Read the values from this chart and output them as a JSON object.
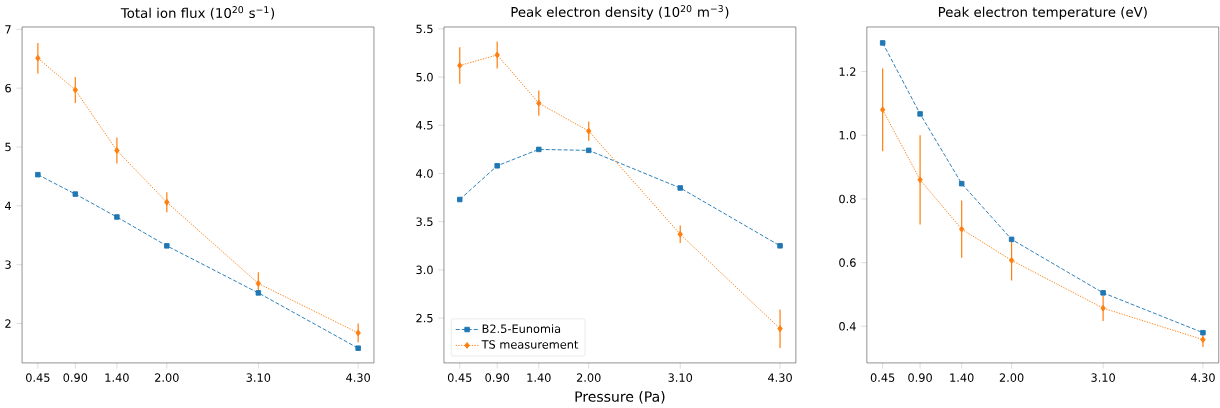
{
  "chart_data": [
    {
      "type": "line",
      "title": "Total ion flux (10$^{20}$ s$^{−1}$)",
      "x": [
        0.45,
        0.9,
        1.4,
        2.0,
        3.1,
        4.3
      ],
      "xlim": [
        0.26,
        4.49
      ],
      "xticks": [
        {
          "value": 0.45,
          "label": "0.45"
        },
        {
          "value": 0.9,
          "label": "0.90"
        },
        {
          "value": 1.4,
          "label": "1.40"
        },
        {
          "value": 2.0,
          "label": "2.00"
        },
        {
          "value": 3.1,
          "label": "3.10"
        },
        {
          "value": 4.3,
          "label": "4.30"
        }
      ],
      "ylim": [
        1.33,
        7.04
      ],
      "yticks": [
        2,
        3,
        4,
        5,
        6,
        7
      ],
      "grid": false,
      "legend": false,
      "series": [
        {
          "color": "#1f77b4",
          "marker": "square",
          "line_style": "dashed",
          "values": [
            4.53,
            4.2,
            3.81,
            3.32,
            2.52,
            1.58
          ]
        },
        {
          "color": "#ff7f0e",
          "marker": "diamond",
          "line_style": "dotted",
          "values": [
            6.51,
            5.97,
            4.94,
            4.06,
            2.68,
            1.84
          ],
          "errors": [
            0.26,
            0.22,
            0.22,
            0.17,
            0.19,
            0.16
          ]
        }
      ]
    },
    {
      "type": "line",
      "title": "Peak electron density (10$^{20}$ m$^{−3}$)",
      "xlabel": "Pressure (Pa)",
      "x": [
        0.45,
        0.9,
        1.4,
        2.0,
        3.1,
        4.3
      ],
      "xlim": [
        0.26,
        4.49
      ],
      "xticks": [
        {
          "value": 0.45,
          "label": "0.45"
        },
        {
          "value": 0.9,
          "label": "0.90"
        },
        {
          "value": 1.4,
          "label": "1.40"
        },
        {
          "value": 2.0,
          "label": "2.00"
        },
        {
          "value": 3.1,
          "label": "3.10"
        },
        {
          "value": 4.3,
          "label": "4.30"
        }
      ],
      "ylim": [
        2.035,
        5.52
      ],
      "yticks": [
        2.5,
        {
          "value": 3,
          "label": "3.0"
        },
        3.5,
        {
          "value": 4,
          "label": "4.0"
        },
        4.5,
        {
          "value": 5,
          "label": "5.0"
        },
        5.5
      ],
      "grid": false,
      "legend": "bottom left",
      "series": [
        {
          "name": "B2.5-Eunomia",
          "color": "#1f77b4",
          "marker": "square",
          "line_style": "dashed",
          "values": [
            3.73,
            4.08,
            4.25,
            4.24,
            3.85,
            3.25
          ]
        },
        {
          "name": "TS measurement",
          "color": "#ff7f0e",
          "marker": "diamond",
          "line_style": "dotted",
          "values": [
            5.12,
            5.23,
            4.73,
            4.44,
            3.37,
            2.39
          ],
          "errors": [
            0.19,
            0.14,
            0.13,
            0.1,
            0.09,
            0.2
          ]
        }
      ]
    },
    {
      "type": "line",
      "title": "Peak electron temperature (eV)",
      "x": [
        0.45,
        0.9,
        1.4,
        2.0,
        3.1,
        4.3
      ],
      "xlim": [
        0.26,
        4.49
      ],
      "xticks": [
        {
          "value": 0.45,
          "label": "0.45"
        },
        {
          "value": 0.9,
          "label": "0.90"
        },
        {
          "value": 1.4,
          "label": "1.40"
        },
        {
          "value": 2.0,
          "label": "2.00"
        },
        {
          "value": 3.1,
          "label": "3.10"
        },
        {
          "value": 4.3,
          "label": "4.30"
        }
      ],
      "ylim": [
        0.285,
        1.34
      ],
      "yticks": [
        0.4,
        0.6,
        0.8,
        {
          "value": 1.0,
          "label": "1.0"
        },
        1.2
      ],
      "grid": false,
      "legend": false,
      "series": [
        {
          "color": "#1f77b4",
          "marker": "square",
          "line_style": "dashed",
          "values": [
            1.29,
            1.067,
            0.848,
            0.673,
            0.505,
            0.38
          ]
        },
        {
          "color": "#ff7f0e",
          "marker": "diamond",
          "line_style": "dotted",
          "values": [
            1.08,
            0.86,
            0.705,
            0.607,
            0.457,
            0.358
          ],
          "errors": [
            0.13,
            0.14,
            0.09,
            0.063,
            0.04,
            0.023
          ]
        }
      ]
    }
  ]
}
